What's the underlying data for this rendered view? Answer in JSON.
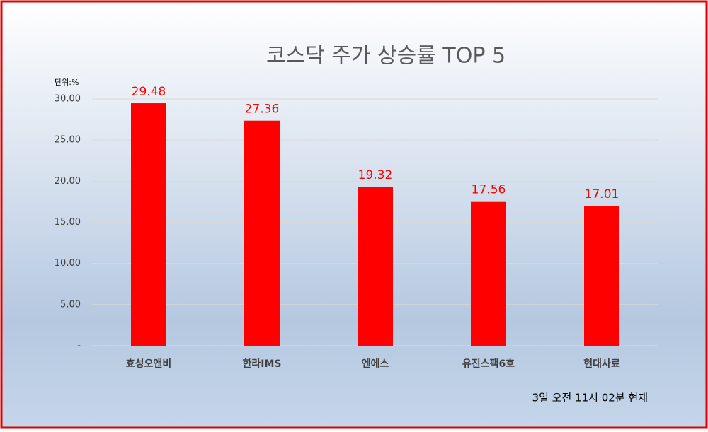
{
  "chart_data": {
    "type": "bar",
    "title": "코스닥 주가 상승률 TOP 5",
    "unit_label": "단위:%",
    "footnote": "3일 오전 11시 02분 현재",
    "categories": [
      "효성오앤비",
      "한라IMS",
      "엔에스",
      "유진스팩6호",
      "현대사료"
    ],
    "values": [
      29.48,
      27.36,
      19.32,
      17.56,
      17.01
    ],
    "color": "#ff0000",
    "ylim": [
      0,
      30
    ],
    "yticks": [
      {
        "value": 0,
        "label": "-"
      },
      {
        "value": 5,
        "label": "5.00"
      },
      {
        "value": 10,
        "label": "10.00"
      },
      {
        "value": 15,
        "label": "15.00"
      },
      {
        "value": 20,
        "label": "20.00"
      },
      {
        "value": 25,
        "label": "25.00"
      },
      {
        "value": 30,
        "label": "30.00"
      }
    ],
    "grid": true
  }
}
